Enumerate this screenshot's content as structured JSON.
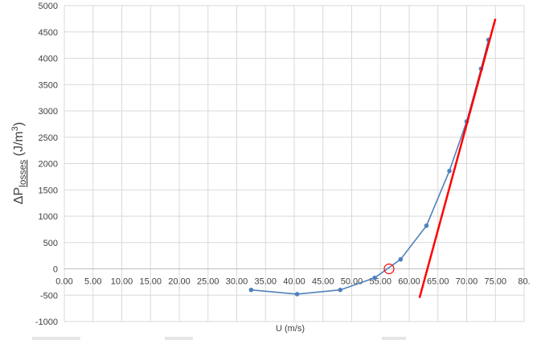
{
  "chart_data": {
    "type": "scatter",
    "xlabel": "U (m/s)",
    "ylabel": {
      "delta_p": "ΔP",
      "subscript": "losses",
      "units": " (J/m",
      "units_sup": "3",
      "units_close": ")"
    },
    "xlim": [
      0,
      80
    ],
    "ylim": [
      -1000,
      5000
    ],
    "x_ticks": [
      "0.00",
      "5.00",
      "10.00",
      "15.00",
      "20.00",
      "25.00",
      "30.00",
      "35.00",
      "40.00",
      "45.00",
      "50.00",
      "55.00",
      "60.00",
      "65.00",
      "70.00",
      "75.00",
      "80."
    ],
    "y_ticks": [
      "5000",
      "4500",
      "4000",
      "3500",
      "3000",
      "2500",
      "2000",
      "1500",
      "1000",
      "500",
      "0",
      "-500",
      "-1000"
    ],
    "grid": true,
    "series": [
      {
        "color": "#4f81bd",
        "points": [
          [
            32.5,
            -400
          ],
          [
            40.5,
            -480
          ],
          [
            48.0,
            -400
          ],
          [
            54.0,
            -170
          ],
          [
            58.5,
            180
          ],
          [
            63.0,
            820
          ],
          [
            67.0,
            1860
          ],
          [
            70.0,
            2800
          ],
          [
            72.5,
            3800
          ],
          [
            73.8,
            4350
          ]
        ]
      }
    ],
    "trend_line": {
      "color": "#ff0000",
      "x": [
        61.8,
        75.0
      ],
      "y": [
        -550,
        4750
      ]
    },
    "highlight_point": {
      "x": 56.5,
      "y": 0,
      "color": "#ff0000"
    }
  }
}
